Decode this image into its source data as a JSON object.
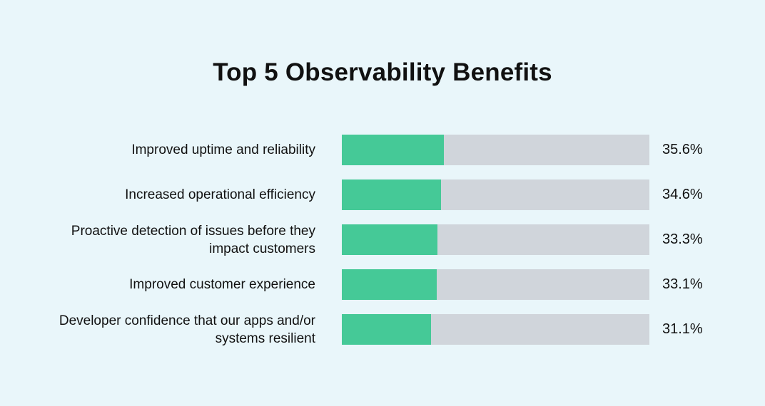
{
  "chart_data": {
    "type": "bar",
    "orientation": "horizontal",
    "title": "Top 5 Observability Benefits",
    "categories": [
      "Improved uptime and reliability",
      "Increased operational efficiency",
      "Proactive detection of issues before they impact customers",
      "Improved customer experience",
      "Developer confidence that our apps and/or systems resilient"
    ],
    "values": [
      35.6,
      34.6,
      33.3,
      33.1,
      31.1
    ],
    "value_labels": [
      "35.6%",
      "34.6%",
      "33.3%",
      "33.1%",
      "31.1%"
    ],
    "xlim": [
      0,
      107
    ],
    "xlabel": "",
    "ylabel": "",
    "grid": false,
    "colors": {
      "fill": "#45c997",
      "track": "#d0d5db",
      "background": "#e9f6fa"
    }
  }
}
